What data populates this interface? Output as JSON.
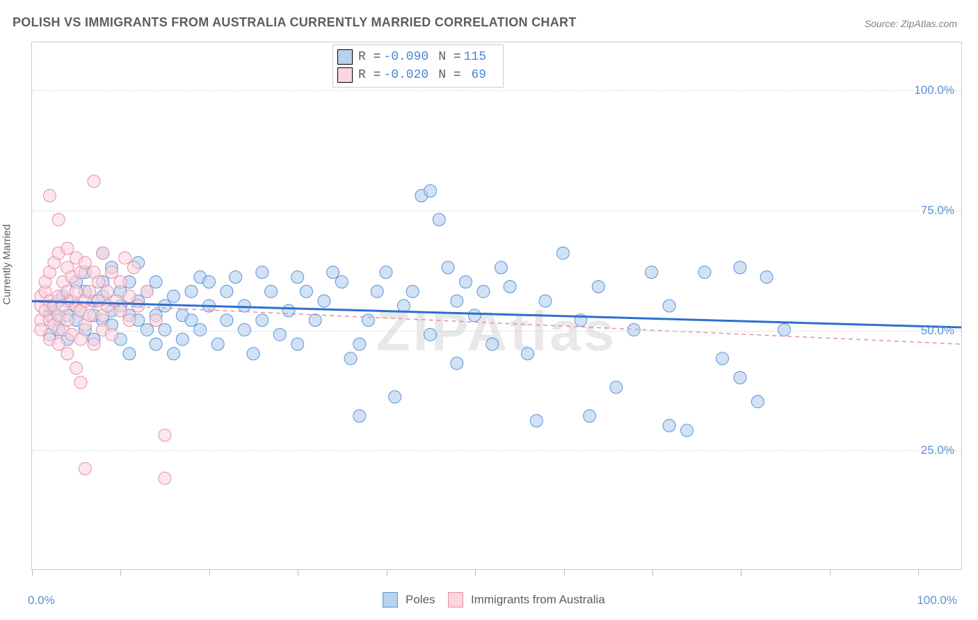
{
  "title": "POLISH VS IMMIGRANTS FROM AUSTRALIA CURRENTLY MARRIED CORRELATION CHART",
  "source": "Source: ZipAtlas.com",
  "ylabel": "Currently Married",
  "watermark": "ZIPAtlas",
  "xaxis": {
    "min_label": "0.0%",
    "max_label": "100.0%",
    "xlim": [
      0,
      105
    ],
    "tick_positions": [
      0,
      10,
      20,
      30,
      40,
      50,
      60,
      70,
      80,
      90,
      100
    ]
  },
  "yaxis": {
    "ylim": [
      0,
      110
    ],
    "ticks": [
      25,
      50,
      75,
      100
    ],
    "tick_labels": [
      "25.0%",
      "50.0%",
      "75.0%",
      "100.0%"
    ]
  },
  "grid_color": "#d8d8d8",
  "border_color": "#cccccc",
  "background_color": "#ffffff",
  "text_color": "#5d5d5d",
  "value_color": "#4a86d1",
  "series": [
    {
      "name": "Poles",
      "legend_label": "Poles",
      "color_fill": "#b9d2ef",
      "color_stroke": "#5a8fd6",
      "marker_radius": 9,
      "marker_opacity": 0.65,
      "stats": {
        "R": "-0.090",
        "N": "115"
      },
      "trend": {
        "x1": 0,
        "y1": 56.0,
        "x2": 105,
        "y2": 50.5,
        "stroke": "#2d6fd0",
        "width": 3,
        "dash": "none"
      },
      "points": [
        [
          2,
          53
        ],
        [
          2,
          55
        ],
        [
          2,
          49
        ],
        [
          2.5,
          54
        ],
        [
          3,
          52
        ],
        [
          3,
          56
        ],
        [
          3,
          50
        ],
        [
          3.5,
          57
        ],
        [
          4,
          53
        ],
        [
          4,
          48
        ],
        [
          4,
          56
        ],
        [
          5,
          55
        ],
        [
          5,
          52
        ],
        [
          5,
          60
        ],
        [
          5.5,
          54
        ],
        [
          6,
          50
        ],
        [
          6,
          62
        ],
        [
          6,
          58
        ],
        [
          7,
          53
        ],
        [
          7,
          56
        ],
        [
          7,
          48
        ],
        [
          8,
          60
        ],
        [
          8,
          52
        ],
        [
          8,
          57
        ],
        [
          8,
          66
        ],
        [
          9,
          54
        ],
        [
          9,
          51
        ],
        [
          9,
          63
        ],
        [
          10,
          55
        ],
        [
          10,
          48
        ],
        [
          10,
          58
        ],
        [
          11,
          53
        ],
        [
          11,
          60
        ],
        [
          11,
          45
        ],
        [
          12,
          56
        ],
        [
          12,
          52
        ],
        [
          12,
          64
        ],
        [
          13,
          50
        ],
        [
          13,
          58
        ],
        [
          14,
          53
        ],
        [
          14,
          47
        ],
        [
          14,
          60
        ],
        [
          15,
          55
        ],
        [
          15,
          50
        ],
        [
          16,
          57
        ],
        [
          16,
          45
        ],
        [
          17,
          53
        ],
        [
          17,
          48
        ],
        [
          18,
          58
        ],
        [
          18,
          52
        ],
        [
          19,
          50
        ],
        [
          19,
          61
        ],
        [
          20,
          55
        ],
        [
          20,
          60
        ],
        [
          21,
          47
        ],
        [
          22,
          52
        ],
        [
          22,
          58
        ],
        [
          23,
          61
        ],
        [
          24,
          50
        ],
        [
          24,
          55
        ],
        [
          25,
          45
        ],
        [
          26,
          62
        ],
        [
          26,
          52
        ],
        [
          27,
          58
        ],
        [
          28,
          49
        ],
        [
          29,
          54
        ],
        [
          30,
          61
        ],
        [
          30,
          47
        ],
        [
          31,
          58
        ],
        [
          32,
          52
        ],
        [
          33,
          56
        ],
        [
          34,
          62
        ],
        [
          35,
          60
        ],
        [
          36,
          44
        ],
        [
          37,
          47
        ],
        [
          37,
          32
        ],
        [
          38,
          52
        ],
        [
          39,
          58
        ],
        [
          40,
          62
        ],
        [
          41,
          36
        ],
        [
          42,
          55
        ],
        [
          43,
          58
        ],
        [
          44,
          78
        ],
        [
          45,
          79
        ],
        [
          45,
          49
        ],
        [
          46,
          73
        ],
        [
          47,
          63
        ],
        [
          48,
          56
        ],
        [
          48,
          43
        ],
        [
          49,
          60
        ],
        [
          50,
          53
        ],
        [
          51,
          58
        ],
        [
          52,
          47
        ],
        [
          53,
          63
        ],
        [
          54,
          59
        ],
        [
          56,
          45
        ],
        [
          57,
          31
        ],
        [
          58,
          56
        ],
        [
          60,
          66
        ],
        [
          62,
          52
        ],
        [
          63,
          32
        ],
        [
          64,
          59
        ],
        [
          66,
          38
        ],
        [
          68,
          50
        ],
        [
          70,
          62
        ],
        [
          72,
          30
        ],
        [
          72,
          55
        ],
        [
          74,
          29
        ],
        [
          76,
          62
        ],
        [
          78,
          44
        ],
        [
          80,
          40
        ],
        [
          80,
          63
        ],
        [
          82,
          35
        ],
        [
          83,
          61
        ],
        [
          85,
          50
        ]
      ]
    },
    {
      "name": "Immigrants from Australia",
      "legend_label": "Immigrants from Australia",
      "color_fill": "#fbd5df",
      "color_stroke": "#e28fa6",
      "marker_radius": 9,
      "marker_opacity": 0.6,
      "stats": {
        "R": "-0.020",
        "N": "69"
      },
      "trend": {
        "x1": 0,
        "y1": 55.8,
        "x2": 105,
        "y2": 47.0,
        "stroke": "#e28fa6",
        "width": 1.5,
        "dash": "6,5"
      },
      "points": [
        [
          1,
          55
        ],
        [
          1,
          57
        ],
        [
          1,
          52
        ],
        [
          1,
          50
        ],
        [
          1.5,
          58
        ],
        [
          1.5,
          54
        ],
        [
          1.5,
          60
        ],
        [
          2,
          56
        ],
        [
          2,
          52
        ],
        [
          2,
          62
        ],
        [
          2,
          48
        ],
        [
          2,
          78
        ],
        [
          2.5,
          55
        ],
        [
          2.5,
          64
        ],
        [
          2.5,
          51
        ],
        [
          3,
          57
        ],
        [
          3,
          53
        ],
        [
          3,
          66
        ],
        [
          3,
          47
        ],
        [
          3,
          73
        ],
        [
          3.5,
          60
        ],
        [
          3.5,
          55
        ],
        [
          3.5,
          50
        ],
        [
          4,
          58
        ],
        [
          4,
          63
        ],
        [
          4,
          52
        ],
        [
          4,
          45
        ],
        [
          4,
          67
        ],
        [
          4.5,
          56
        ],
        [
          4.5,
          61
        ],
        [
          4.5,
          49
        ],
        [
          5,
          55
        ],
        [
          5,
          65
        ],
        [
          5,
          42
        ],
        [
          5,
          58
        ],
        [
          5.5,
          54
        ],
        [
          5.5,
          62
        ],
        [
          5.5,
          48
        ],
        [
          5.5,
          39
        ],
        [
          6,
          56
        ],
        [
          6,
          64
        ],
        [
          6,
          51
        ],
        [
          6,
          21
        ],
        [
          6.5,
          58
        ],
        [
          6.5,
          53
        ],
        [
          7,
          62
        ],
        [
          7,
          47
        ],
        [
          7,
          81
        ],
        [
          7.5,
          56
        ],
        [
          7.5,
          60
        ],
        [
          8,
          53
        ],
        [
          8,
          66
        ],
        [
          8,
          50
        ],
        [
          8.5,
          58
        ],
        [
          8.5,
          55
        ],
        [
          9,
          62
        ],
        [
          9,
          49
        ],
        [
          9.5,
          56
        ],
        [
          10,
          60
        ],
        [
          10,
          54
        ],
        [
          10.5,
          65
        ],
        [
          11,
          57
        ],
        [
          11,
          52
        ],
        [
          11.5,
          63
        ],
        [
          12,
          55
        ],
        [
          13,
          58
        ],
        [
          14,
          52
        ],
        [
          15,
          28
        ],
        [
          15,
          19
        ]
      ]
    }
  ],
  "bottom_legend": {
    "items": [
      "Poles",
      "Immigrants from Australia"
    ]
  },
  "fontsize": {
    "title": 18,
    "axis_label": 15,
    "tick": 17,
    "legend": 17,
    "stats": 18,
    "watermark": 80
  }
}
